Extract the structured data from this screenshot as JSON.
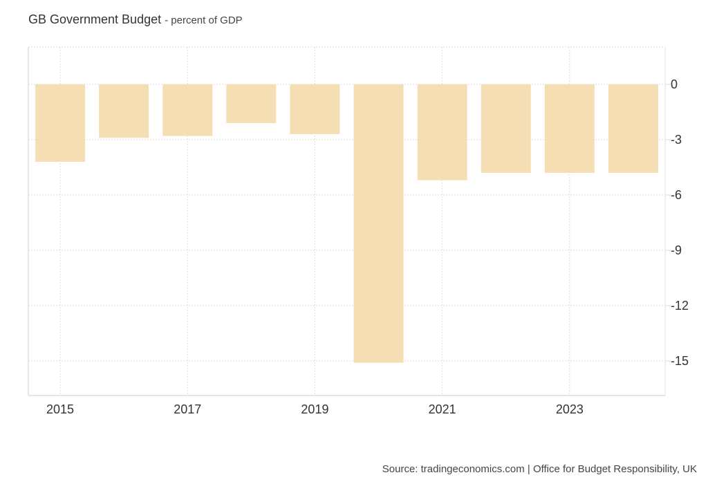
{
  "header": {
    "title": "GB Government Budget",
    "subtitle": "- percent of GDP"
  },
  "footer": {
    "source": "Source: tradingeconomics.com | Office for Budget Responsibility, UK"
  },
  "colors": {
    "bar": "#f5deb3",
    "grid": "#dddddd",
    "axis": "#e6e6e6",
    "text": "#333333"
  },
  "chart_data": {
    "type": "bar",
    "title": "GB Government Budget - percent of GDP",
    "xlabel": "",
    "ylabel": "",
    "categories": [
      "2015",
      "2016",
      "2017",
      "2018",
      "2019",
      "2020",
      "2021",
      "2022",
      "2023",
      "2024"
    ],
    "values": [
      -4.2,
      -2.9,
      -2.8,
      -2.1,
      -2.7,
      -15.1,
      -5.2,
      -4.8,
      -4.8,
      -4.8
    ],
    "x_tick_labels": [
      "2015",
      "2017",
      "2019",
      "2021",
      "2023"
    ],
    "y_ticks": [
      0,
      -3,
      -6,
      -9,
      -12,
      -15
    ],
    "ylim": [
      -16.9,
      2.0
    ],
    "y_axis_side": "right",
    "grid": true,
    "legend": "none"
  }
}
